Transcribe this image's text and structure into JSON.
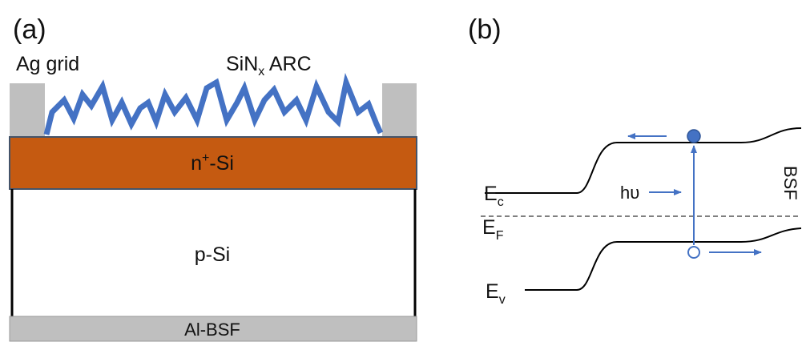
{
  "panel_a": {
    "label": "(a)",
    "ag_grid": "Ag grid",
    "arc": {
      "base": "SiN",
      "sub": "x",
      "rest": " ARC"
    },
    "n_layer": {
      "base": "n",
      "sup": "+",
      "rest": "-Si"
    },
    "p_layer": "p-Si",
    "back": "Al-BSF"
  },
  "panel_b": {
    "label": "(b)",
    "ec": {
      "base": "E",
      "sub": "c"
    },
    "ef": {
      "base": "E",
      "sub": "F"
    },
    "ev": {
      "base": "E",
      "sub": "v"
    },
    "photon": "hυ",
    "bsf": "BSF"
  }
}
